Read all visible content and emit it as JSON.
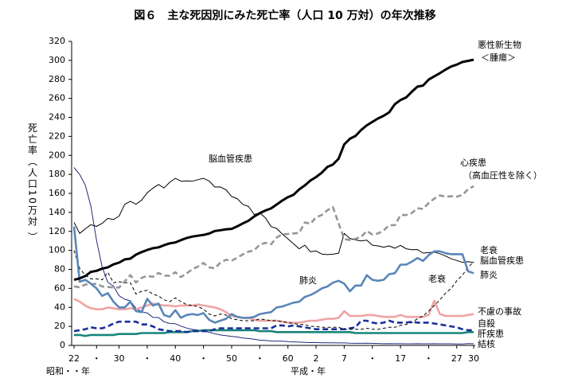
{
  "chart_data": {
    "type": "line",
    "title": "図６　主な死因別にみた死亡率（人口 10 万対）の年次推移",
    "y_label": "死亡率（人口10万対 ）",
    "x_era_labels": [
      "昭和・・年",
      "平成・年"
    ],
    "annotations": [
      "脳血管疾患",
      "肺炎",
      "老衰"
    ],
    "categories": [
      "22",
      null,
      null,
      null,
      "・",
      null,
      null,
      null,
      "30",
      null,
      null,
      null,
      null,
      "・",
      null,
      null,
      null,
      null,
      "40",
      null,
      null,
      null,
      null,
      "・",
      null,
      null,
      null,
      null,
      "50",
      null,
      null,
      null,
      null,
      "・",
      null,
      null,
      null,
      null,
      "60",
      null,
      null,
      null,
      null,
      "2",
      null,
      null,
      null,
      null,
      "7",
      null,
      null,
      null,
      null,
      "・",
      null,
      null,
      null,
      null,
      "17",
      null,
      null,
      null,
      null,
      "・",
      null,
      null,
      null,
      null,
      "27",
      null,
      null,
      "30"
    ],
    "ylim": [
      0,
      320
    ],
    "yticks": [
      0,
      20,
      40,
      60,
      80,
      100,
      120,
      140,
      160,
      180,
      200,
      220,
      240,
      260,
      280,
      300,
      320
    ],
    "grid": false,
    "series": [
      {
        "name": "悪性新生物 ＜腫瘍＞",
        "color": "#000000",
        "dashed": false,
        "values": [
          69.0,
          70.5,
          73.0,
          77.4,
          78.5,
          80.8,
          82.2,
          85.3,
          87.1,
          90.5,
          91.3,
          95.5,
          98.2,
          100.4,
          102.3,
          103.2,
          105.5,
          107.4,
          108.4,
          110.8,
          113.0,
          114.5,
          115.4,
          116.3,
          117.7,
          120.4,
          121.2,
          122.2,
          122.6,
          125.3,
          128.4,
          131.3,
          135.7,
          139.1,
          142.0,
          144.2,
          148.3,
          152.5,
          156.1,
          158.5,
          164.2,
          168.4,
          173.6,
          177.2,
          181.7,
          187.8,
          190.4,
          196.4,
          211.6,
          217.5,
          220.4,
          226.7,
          231.6,
          235.2,
          238.8,
          241.7,
          245.4,
          253.9,
          258.3,
          261.0,
          266.9,
          272.3,
          273.5,
          279.7,
          283.2,
          286.6,
          290.3,
          293.5,
          295.5,
          298.3,
          299.5,
          300.7
        ]
      },
      {
        "name": "心疾患 （高血圧性を除く）",
        "color": "#969696",
        "dashed": true,
        "values": [
          62.2,
          61.0,
          64.2,
          64.2,
          65.0,
          62.0,
          61.5,
          61.0,
          60.9,
          67.3,
          74.0,
          66.3,
          71.0,
          73.2,
          72.1,
          76.2,
          73.5,
          73.3,
          77.0,
          71.9,
          75.7,
          80.2,
          82.9,
          86.7,
          82.1,
          81.2,
          87.0,
          90.1,
          89.2,
          92.3,
          95.8,
          98.7,
          100.0,
          106.2,
          107.9,
          106.5,
          113.5,
          117.0,
          117.3,
          117.9,
          118.4,
          129.4,
          128.1,
          134.8,
          137.2,
          142.2,
          145.6,
          128.6,
          112.0,
          110.8,
          112.2,
          114.3,
          120.4,
          116.8,
          117.8,
          121.0,
          126.5,
          126.5,
          137.2,
          137.2,
          139.2,
          144.4,
          143.7,
          149.8,
          154.5,
          157.9,
          156.5,
          157.0,
          156.5,
          158.4,
          164.3,
          167.6
        ]
      },
      {
        "name": "老衰",
        "color": "#000000",
        "dashed": true,
        "values": [
          100,
          81,
          74,
          70,
          70,
          69,
          77,
          66,
          67,
          66,
          66,
          54,
          57,
          58,
          54,
          52,
          48,
          46,
          50,
          46,
          43,
          42,
          41,
          38,
          33,
          31,
          33,
          32,
          28,
          27,
          26,
          26,
          26,
          28,
          27,
          26,
          26,
          25,
          24,
          23,
          22,
          22,
          20,
          20,
          19,
          19,
          19,
          19,
          17,
          17,
          17,
          17,
          18,
          17,
          17,
          18,
          19,
          19,
          21,
          22,
          24,
          28,
          31,
          36,
          42,
          48,
          55,
          60,
          68,
          74,
          82,
          88
        ]
      },
      {
        "name": "脳血管疾患",
        "color": "#000000",
        "dashed": false,
        "values": [
          129.4,
          117.9,
          122.6,
          127.1,
          125.2,
          128.5,
          133.7,
          132.4,
          136.1,
          148.4,
          151.7,
          148.6,
          152.7,
          160.7,
          165.4,
          169.4,
          165.7,
          171.7,
          175.8,
          172.8,
          173.1,
          172.8,
          174.4,
          175.8,
          173.1,
          166.7,
          166.8,
          163.8,
          156.7,
          154.5,
          148.4,
          146.2,
          137.7,
          139.5,
          134.3,
          125.1,
          123.1,
          117.2,
          112.2,
          106.9,
          101.7,
          105.5,
          98.5,
          99.4,
          96.2,
          95.6,
          96.0,
          96.9,
          117.9,
          112.6,
          111.0,
          110.0,
          110.8,
          105.5,
          104.7,
          103.4,
          104.7,
          102.3,
          105.3,
          101.7,
          100.8,
          100.9,
          97.2,
          97.7,
          98.2,
          96.5,
          94.1,
          91.1,
          89.4,
          87.4,
          88.2,
          87.1
        ]
      },
      {
        "name": "肺炎",
        "color": "#5a86b8",
        "dashed": false,
        "values": [
          125,
          67,
          69,
          65,
          60,
          52,
          55,
          46,
          40,
          40,
          46,
          36,
          35,
          49,
          42,
          44,
          32,
          30,
          37,
          29,
          32,
          33,
          32,
          34,
          27,
          24,
          26,
          28,
          33,
          30,
          29,
          29,
          30,
          33,
          34,
          35,
          40,
          41,
          43,
          45,
          46,
          51,
          53,
          56,
          60,
          62,
          66,
          68,
          65,
          57,
          63,
          63,
          74,
          69,
          68,
          69,
          75,
          76,
          85,
          85,
          88,
          92,
          89,
          95,
          99,
          99,
          97,
          96,
          96,
          96,
          78,
          76
        ]
      },
      {
        "name": "不慮の事故",
        "color": "#f0a3a3",
        "dashed": false,
        "values": [
          49,
          46,
          42,
          39,
          38,
          38,
          40,
          39,
          38,
          38,
          39,
          38,
          40,
          42,
          44,
          43,
          42,
          42,
          41,
          42,
          42,
          42,
          43,
          42,
          41,
          40,
          38,
          35,
          31,
          30,
          29,
          29,
          27,
          26,
          26,
          26,
          26,
          25,
          24,
          24,
          24,
          25,
          26,
          26,
          27,
          28,
          28,
          29,
          36,
          31,
          31,
          31,
          32,
          32,
          31,
          30,
          30,
          30,
          32,
          30,
          30,
          30,
          30,
          32,
          47,
          33,
          31,
          31,
          31,
          31,
          32,
          33
        ]
      },
      {
        "name": "自殺",
        "color": "#1a2f9a",
        "dashed": true,
        "values": [
          15,
          16,
          17,
          19,
          18,
          18,
          20,
          23,
          25,
          25,
          25,
          25,
          22,
          22,
          20,
          17,
          16,
          15,
          15,
          15,
          14,
          15,
          15,
          15,
          15,
          17,
          18,
          18,
          18,
          18,
          18,
          18,
          18,
          18,
          18,
          18,
          21,
          21,
          20,
          21,
          20,
          19,
          18,
          17,
          17,
          17,
          17,
          17,
          17,
          18,
          19,
          26,
          26,
          24,
          23,
          24,
          26,
          24,
          24,
          24,
          25,
          24,
          24,
          24,
          23,
          22,
          21,
          20,
          19,
          17,
          16,
          16
        ]
      },
      {
        "name": "肝疾患",
        "color": "#17857a",
        "dashed": false,
        "values": [
          11,
          11,
          10,
          11,
          11,
          11,
          11,
          11,
          12,
          12,
          12,
          12,
          13,
          13,
          13,
          13,
          13,
          14,
          14,
          14,
          14,
          15,
          15,
          16,
          16,
          16,
          16,
          16,
          16,
          16,
          16,
          16,
          16,
          15,
          15,
          15,
          14,
          14,
          14,
          14,
          14,
          14,
          14,
          14,
          14,
          14,
          14,
          14,
          14,
          14,
          13,
          13,
          13,
          13,
          13,
          13,
          13,
          13,
          13,
          13,
          13,
          13,
          13,
          13,
          13,
          13,
          13,
          13,
          13,
          13,
          14,
          14
        ]
      },
      {
        "name": "結核",
        "color": "#1f2a7a",
        "dashed": false,
        "values": [
          187.2,
          179.9,
          168.8,
          146.4,
          110.3,
          82.2,
          66.5,
          62.4,
          52.3,
          48.6,
          46.9,
          39.0,
          35.4,
          34.2,
          29.6,
          29.3,
          24.9,
          23.0,
          22.8,
          20.3,
          18.3,
          16.8,
          16.1,
          15.4,
          13.8,
          12.3,
          11.0,
          10.2,
          9.5,
          8.9,
          7.8,
          7.2,
          6.5,
          5.5,
          5.2,
          4.6,
          4.5,
          4.5,
          4.0,
          3.7,
          3.4,
          3.2,
          2.9,
          3.0,
          2.7,
          2.8,
          2.7,
          2.6,
          2.6,
          2.3,
          2.2,
          2.2,
          2.3,
          2.1,
          2.0,
          1.8,
          1.9,
          1.8,
          1.8,
          1.7,
          1.7,
          1.8,
          1.7,
          1.7,
          1.8,
          1.7,
          1.7,
          1.7,
          1.5,
          1.5,
          1.9,
          1.8
        ]
      }
    ]
  }
}
